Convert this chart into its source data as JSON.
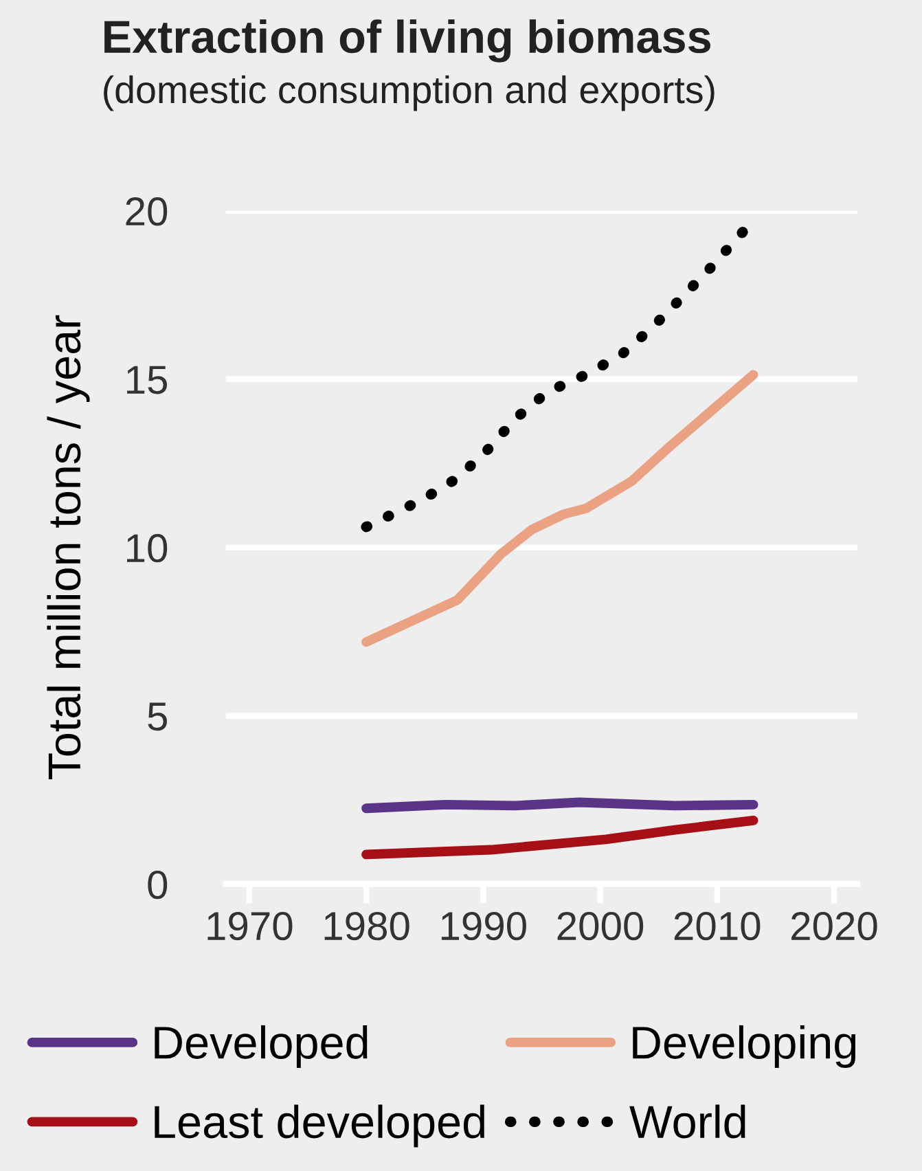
{
  "chart_data": {
    "type": "line",
    "title": "Extraction of living biomass",
    "subtitle": "(domestic consumption and exports)",
    "ylabel": "Total million tons / year",
    "xlim": [
      1968,
      2022
    ],
    "xticks": [
      1970,
      1980,
      1990,
      2000,
      2010,
      2020
    ],
    "ylim": [
      0,
      20
    ],
    "yticks": [
      0,
      5,
      10,
      15,
      20
    ],
    "grid": "y",
    "legend": "bottom",
    "series": [
      {
        "name": "Developed",
        "color": "#5a3486",
        "line_style": "solid",
        "x": [
          1980,
          1986.8,
          1992.7,
          1998.2,
          2006.4,
          2013.1
        ],
        "values": [
          2.25,
          2.36,
          2.33,
          2.43,
          2.33,
          2.36
        ]
      },
      {
        "name": "Developing",
        "color": "#eba283",
        "line_style": "solid",
        "x": [
          1980,
          1987.8,
          1991.5,
          1994.2,
          1996.9,
          1998.8,
          2002.7,
          2005.8,
          2013.1
        ],
        "values": [
          7.19,
          8.44,
          9.8,
          10.54,
          10.99,
          11.16,
          11.97,
          12.95,
          15.13
        ]
      },
      {
        "name": "Least developed",
        "color": "#a50f15",
        "line_style": "solid",
        "x": [
          1980,
          1990.7,
          2000.5,
          2006.4,
          2013.1
        ],
        "values": [
          0.88,
          1.02,
          1.33,
          1.61,
          1.89
        ]
      },
      {
        "name": "World",
        "color": "#000000",
        "line_style": "dotted",
        "x": [
          1980,
          1984.8,
          1987.8,
          1990.4,
          1992.8,
          1995.5,
          1998.7,
          2001.8,
          2004.5,
          2007,
          2009.5,
          2013.1
        ],
        "values": [
          10.61,
          11.42,
          12.06,
          12.91,
          13.84,
          14.62,
          15.12,
          15.72,
          16.55,
          17.43,
          18.33,
          19.72
        ]
      }
    ]
  }
}
